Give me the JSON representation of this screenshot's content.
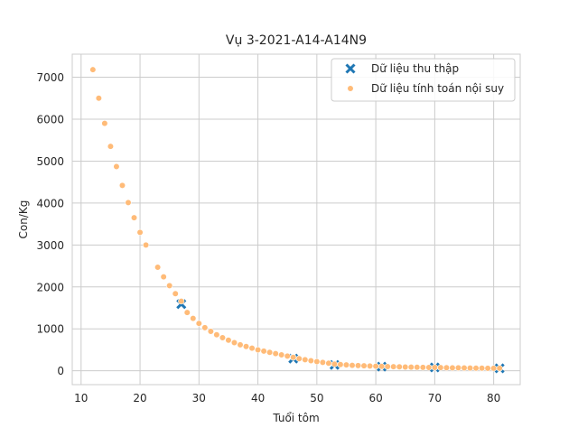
{
  "chart_data": {
    "type": "scatter",
    "title": "Vụ 3-2021-A14-A14N9",
    "xlabel": "Tuổi tôm",
    "ylabel": "Con/Kg",
    "xlim": [
      8.5,
      84.5
    ],
    "ylim": [
      -330,
      7550
    ],
    "xticks": [
      10,
      20,
      30,
      40,
      50,
      60,
      70,
      80
    ],
    "yticks": [
      0,
      1000,
      2000,
      3000,
      4000,
      5000,
      6000,
      7000
    ],
    "grid": true,
    "legend_position": "top-right",
    "series": [
      {
        "name": "Dữ liệu thu thập",
        "marker": "x",
        "color": "#1f77b4",
        "x": [
          27,
          46,
          53,
          61,
          70,
          81
        ],
        "y": [
          1590,
          290,
          140,
          100,
          80,
          60
        ]
      },
      {
        "name": "Dữ liệu tính toán nội suy",
        "marker": "circle",
        "color": "#ffbb78",
        "x": [
          12,
          13,
          14,
          15,
          16,
          17,
          18,
          19,
          20,
          21,
          23,
          24,
          25,
          26,
          27,
          28,
          29,
          30,
          31,
          32,
          33,
          34,
          35,
          36,
          37,
          38,
          39,
          40,
          41,
          42,
          43,
          44,
          45,
          46,
          47,
          48,
          49,
          50,
          51,
          52,
          53,
          54,
          55,
          56,
          57,
          58,
          59,
          60,
          61,
          62,
          63,
          64,
          65,
          66,
          67,
          68,
          69,
          70,
          71,
          72,
          73,
          74,
          75,
          76,
          77,
          78,
          79,
          80,
          81
        ],
        "y": [
          7180,
          6500,
          5900,
          5350,
          4870,
          4420,
          4010,
          3650,
          3300,
          3000,
          2470,
          2240,
          2030,
          1840,
          1660,
          1390,
          1250,
          1130,
          1030,
          940,
          860,
          790,
          730,
          670,
          620,
          580,
          540,
          500,
          470,
          440,
          410,
          380,
          350,
          320,
          290,
          265,
          240,
          220,
          200,
          180,
          160,
          150,
          140,
          130,
          125,
          120,
          115,
          110,
          105,
          100,
          97,
          94,
          91,
          88,
          85,
          82,
          80,
          78,
          76,
          74,
          72,
          70,
          68,
          66,
          64,
          62,
          61,
          60,
          59
        ]
      }
    ]
  }
}
